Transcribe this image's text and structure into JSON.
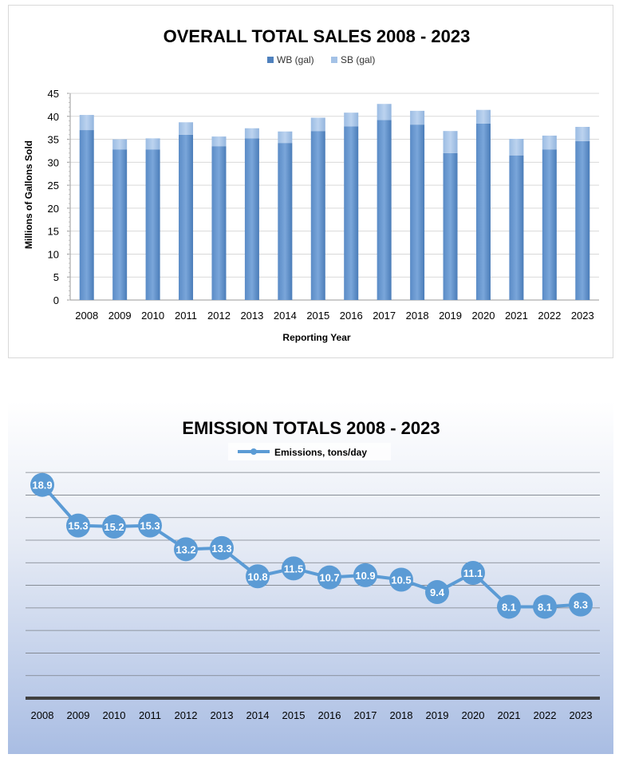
{
  "chart_data": [
    {
      "type": "bar",
      "stacked": true,
      "title": "OVERALL TOTAL SALES 2008 - 2023",
      "xlabel": "Reporting Year",
      "ylabel": "Millions of Gallons Sold",
      "ylim": [
        0,
        45
      ],
      "yticks": [
        "0",
        "5",
        "10",
        "15",
        "20",
        "25",
        "30",
        "35",
        "40",
        "45"
      ],
      "grid": true,
      "legend_position": "top",
      "categories": [
        "2008",
        "2009",
        "2010",
        "2011",
        "2012",
        "2013",
        "2014",
        "2015",
        "2016",
        "2017",
        "2018",
        "2019",
        "2020",
        "2021",
        "2022",
        "2023"
      ],
      "series": [
        {
          "name": "WB (gal)",
          "color": "#4f81bd",
          "values": [
            37.0,
            32.8,
            32.8,
            36.0,
            33.5,
            35.2,
            34.2,
            36.8,
            37.8,
            39.2,
            38.2,
            32.0,
            38.4,
            31.5,
            32.8,
            34.6
          ]
        },
        {
          "name": "SB (gal)",
          "color": "#a4c2e6",
          "values": [
            3.3,
            2.2,
            2.4,
            2.7,
            2.1,
            2.2,
            2.5,
            2.9,
            3.0,
            3.5,
            3.0,
            4.8,
            3.0,
            3.6,
            3.0,
            3.1
          ]
        }
      ]
    },
    {
      "type": "line",
      "title": "EMISSION TOTALS 2008 - 2023",
      "legend_position": "top",
      "grid": true,
      "ylim": [
        0,
        21
      ],
      "x": [
        "2008",
        "2009",
        "2010",
        "2011",
        "2012",
        "2013",
        "2014",
        "2015",
        "2016",
        "2017",
        "2018",
        "2019",
        "2020",
        "2021",
        "2022",
        "2023"
      ],
      "series": [
        {
          "name": "Emissions, tons/day",
          "color": "#5b9bd5",
          "values": [
            18.9,
            15.3,
            15.2,
            15.3,
            13.2,
            13.3,
            10.8,
            11.5,
            10.7,
            10.9,
            10.5,
            9.4,
            11.1,
            8.1,
            8.1,
            8.3
          ],
          "labels": [
            "18.9",
            "15.3",
            "15.2",
            "15.3",
            "13.2",
            "13.3",
            "10.8",
            "11.5",
            "10.7",
            "10.9",
            "10.5",
            "9.4",
            "11.1",
            "8.1",
            "8.1",
            "8.3"
          ]
        }
      ]
    }
  ]
}
